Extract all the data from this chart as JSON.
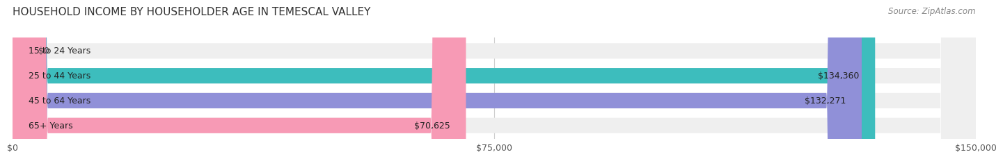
{
  "title": "HOUSEHOLD INCOME BY HOUSEHOLDER AGE IN TEMESCAL VALLEY",
  "source": "Source: ZipAtlas.com",
  "categories": [
    "15 to 24 Years",
    "25 to 44 Years",
    "45 to 64 Years",
    "65+ Years"
  ],
  "values": [
    0,
    134360,
    132271,
    70625
  ],
  "value_labels": [
    "$0",
    "$134,360",
    "$132,271",
    "$70,625"
  ],
  "bar_colors": [
    "#c9a8d4",
    "#3dbdbd",
    "#9090d8",
    "#f79ab5"
  ],
  "bar_bg_color": "#efefef",
  "xmax": 150000,
  "xtick_labels": [
    "$0",
    "$75,000",
    "$150,000"
  ],
  "fig_bg_color": "#ffffff",
  "title_fontsize": 11,
  "source_fontsize": 8.5,
  "label_fontsize": 9,
  "tick_fontsize": 9
}
